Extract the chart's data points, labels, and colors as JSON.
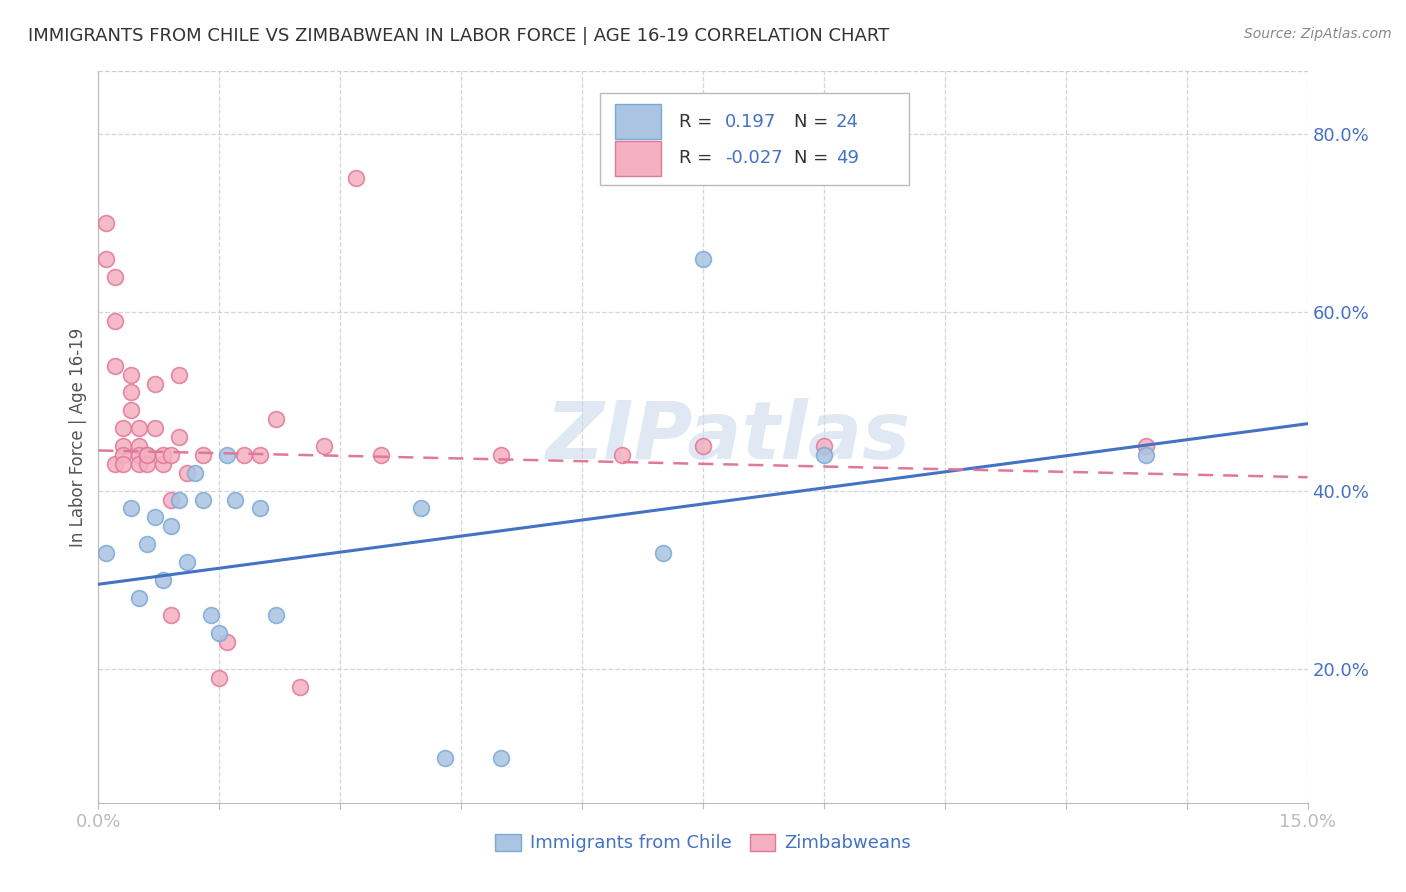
{
  "title": "IMMIGRANTS FROM CHILE VS ZIMBABWEAN IN LABOR FORCE | AGE 16-19 CORRELATION CHART",
  "source": "Source: ZipAtlas.com",
  "ylabel_label": "In Labor Force | Age 16-19",
  "xlim": [
    0.0,
    0.15
  ],
  "ylim": [
    0.05,
    0.87
  ],
  "yticks_right": [
    0.2,
    0.4,
    0.6,
    0.8
  ],
  "ytick_right_labels": [
    "20.0%",
    "40.0%",
    "60.0%",
    "80.0%"
  ],
  "background_color": "#ffffff",
  "grid_color": "#cccccc",
  "watermark": "ZIPatlas",
  "chile_color": "#aac4e2",
  "chile_edge": "#7aaad4",
  "zim_color": "#f4afc0",
  "zim_edge": "#e07898",
  "chile_line_color": "#4472c4",
  "zim_line_color": "#e07898",
  "chile_scatter_x": [
    0.001,
    0.004,
    0.005,
    0.006,
    0.007,
    0.008,
    0.009,
    0.01,
    0.011,
    0.012,
    0.013,
    0.014,
    0.015,
    0.016,
    0.017,
    0.02,
    0.022,
    0.04,
    0.043,
    0.05,
    0.07,
    0.075,
    0.09,
    0.13
  ],
  "chile_scatter_y": [
    0.33,
    0.38,
    0.28,
    0.34,
    0.37,
    0.3,
    0.36,
    0.39,
    0.32,
    0.42,
    0.39,
    0.26,
    0.24,
    0.44,
    0.39,
    0.38,
    0.26,
    0.38,
    0.1,
    0.1,
    0.33,
    0.66,
    0.44,
    0.44
  ],
  "zim_scatter_x": [
    0.001,
    0.001,
    0.002,
    0.002,
    0.002,
    0.002,
    0.003,
    0.003,
    0.003,
    0.003,
    0.004,
    0.004,
    0.004,
    0.005,
    0.005,
    0.005,
    0.005,
    0.006,
    0.006,
    0.006,
    0.007,
    0.007,
    0.008,
    0.008,
    0.009,
    0.009,
    0.009,
    0.01,
    0.01,
    0.011,
    0.013,
    0.015,
    0.016,
    0.018,
    0.02,
    0.022,
    0.025,
    0.028,
    0.032,
    0.035,
    0.05,
    0.065,
    0.075,
    0.09,
    0.13
  ],
  "zim_scatter_y": [
    0.7,
    0.66,
    0.64,
    0.59,
    0.54,
    0.43,
    0.47,
    0.45,
    0.44,
    0.43,
    0.53,
    0.51,
    0.49,
    0.47,
    0.45,
    0.44,
    0.43,
    0.44,
    0.43,
    0.44,
    0.47,
    0.52,
    0.43,
    0.44,
    0.26,
    0.44,
    0.39,
    0.53,
    0.46,
    0.42,
    0.44,
    0.19,
    0.23,
    0.44,
    0.44,
    0.48,
    0.18,
    0.45,
    0.75,
    0.44,
    0.44,
    0.44,
    0.45,
    0.45,
    0.45
  ],
  "chile_trendline_x": [
    0.0,
    0.15
  ],
  "chile_trendline_y": [
    0.295,
    0.475
  ],
  "zim_trendline_x": [
    0.0,
    0.15
  ],
  "zim_trendline_y": [
    0.445,
    0.415
  ]
}
